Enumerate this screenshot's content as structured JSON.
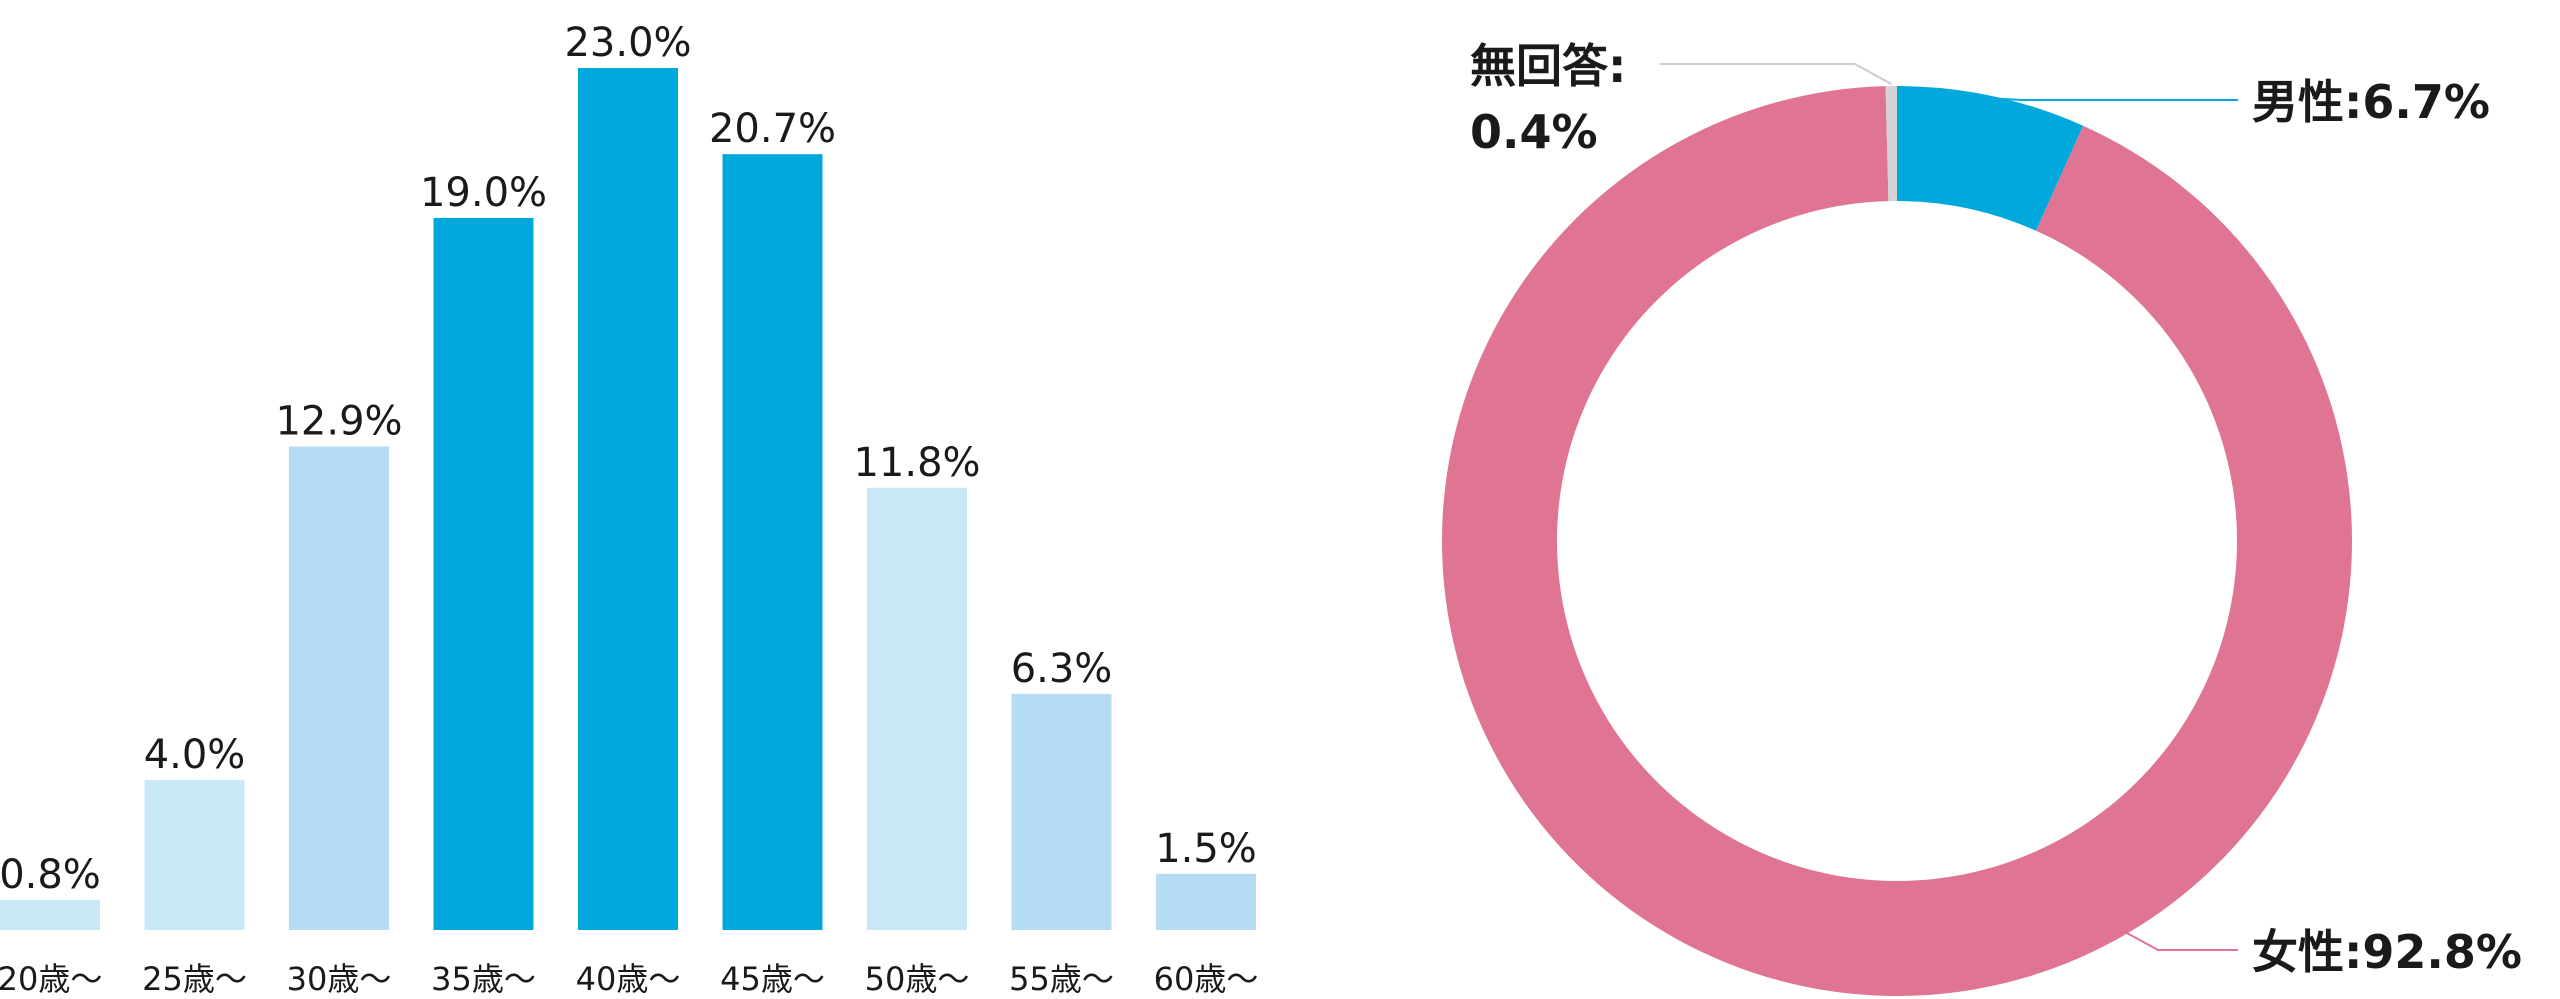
{
  "chart_data": [
    {
      "type": "bar",
      "categories": [
        "20歳～",
        "25歳～",
        "30歳～",
        "35歳～",
        "40歳～",
        "45歳～",
        "50歳～",
        "55歳～",
        "60歳～"
      ],
      "values": [
        0.8,
        4.0,
        12.9,
        19.0,
        23.0,
        20.7,
        11.8,
        6.3,
        1.5
      ],
      "value_labels": [
        "0.8%",
        "4.0%",
        "12.9%",
        "19.0%",
        "23.0%",
        "20.7%",
        "11.8%",
        "6.3%",
        "1.5%"
      ],
      "bar_colors": [
        "#c8e8f8",
        "#c8e8f8",
        "#b6dcf4",
        "#00a8dc",
        "#00a8dc",
        "#00a8dc",
        "#c8e8f8",
        "#b6dcf4",
        "#b6dcf4"
      ],
      "title": "",
      "xlabel": "",
      "ylabel": "",
      "ylim": [
        0,
        23.0
      ],
      "grid": false,
      "legend": "none"
    },
    {
      "type": "pie",
      "donut": true,
      "slices": [
        {
          "name": "男性",
          "value": 6.7,
          "label": "男性:6.7%",
          "color": "#00a8dc",
          "leader_color": "#00a8dc"
        },
        {
          "name": "女性",
          "value": 92.8,
          "label": "女性:92.8%",
          "color": "#e07593",
          "leader_color": "#e07593"
        },
        {
          "name": "無回答",
          "value": 0.4,
          "label_line1": "無回答:",
          "label_line2": "0.4%",
          "color": "#d4d4d4",
          "leader_color": "#cccccc"
        }
      ],
      "start": "top",
      "direction": "clockwise",
      "title": "",
      "legend": "none"
    }
  ]
}
